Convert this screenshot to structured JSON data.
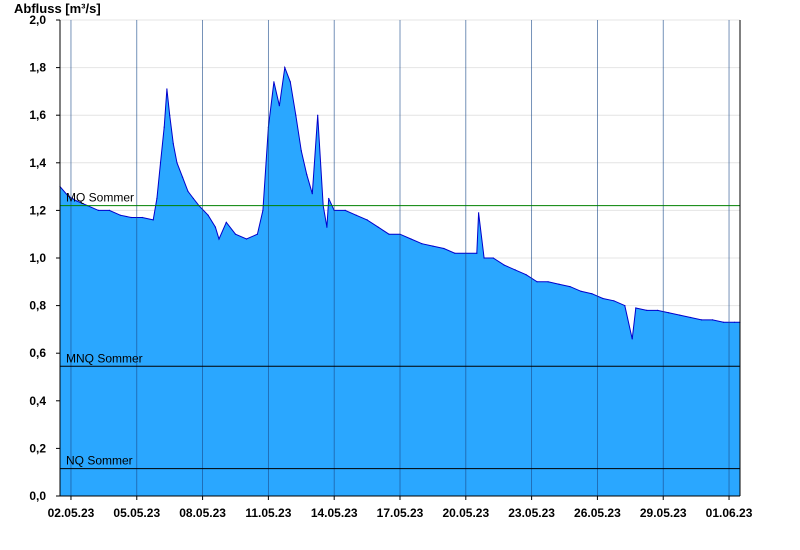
{
  "chart_data": {
    "type": "area",
    "ylabel": "Abfluss [m³/s]",
    "ylim": [
      0,
      2.0
    ],
    "y_ticks": [
      "0,0",
      "0,2",
      "0,4",
      "0,6",
      "0,8",
      "1,0",
      "1,2",
      "1,4",
      "1,6",
      "1,8",
      "2,0"
    ],
    "x_range": [
      "2023-05-01T12:00",
      "2023-06-01T12:00"
    ],
    "x_ticks": [
      {
        "date": "2023-05-02",
        "label": "02.05.23"
      },
      {
        "date": "2023-05-05",
        "label": "05.05.23"
      },
      {
        "date": "2023-05-08",
        "label": "08.05.23"
      },
      {
        "date": "2023-05-11",
        "label": "11.05.23"
      },
      {
        "date": "2023-05-14",
        "label": "14.05.23"
      },
      {
        "date": "2023-05-17",
        "label": "17.05.23"
      },
      {
        "date": "2023-05-20",
        "label": "20.05.23"
      },
      {
        "date": "2023-05-23",
        "label": "23.05.23"
      },
      {
        "date": "2023-05-26",
        "label": "26.05.23"
      },
      {
        "date": "2023-05-29",
        "label": "29.05.23"
      },
      {
        "date": "2023-06-01",
        "label": "01.06.23"
      }
    ],
    "grid": true,
    "series": [
      {
        "fill_color": "#2aa7ff",
        "line_color": "#0000cc",
        "x": [
          "2023-05-01T12:00",
          "2023-05-01T21:00",
          "2023-05-02T06:00",
          "2023-05-02T18:00",
          "2023-05-03T06:00",
          "2023-05-03T18:00",
          "2023-05-04T06:00",
          "2023-05-04T18:00",
          "2023-05-05T06:00",
          "2023-05-05T18:00",
          "2023-05-05T22:00",
          "2023-05-06T02:00",
          "2023-05-06T06:00",
          "2023-05-06T09:00",
          "2023-05-06T12:00",
          "2023-05-06T16:00",
          "2023-05-06T20:00",
          "2023-05-07T02:00",
          "2023-05-07T08:00",
          "2023-05-07T14:00",
          "2023-05-07T20:00",
          "2023-05-08T06:00",
          "2023-05-08T14:00",
          "2023-05-08T18:00",
          "2023-05-09T02:00",
          "2023-05-09T12:00",
          "2023-05-10T00:00",
          "2023-05-10T12:00",
          "2023-05-10T18:00",
          "2023-05-11T00:00",
          "2023-05-11T06:00",
          "2023-05-11T12:00",
          "2023-05-11T18:00",
          "2023-05-12T00:00",
          "2023-05-12T06:00",
          "2023-05-12T12:00",
          "2023-05-12T18:00",
          "2023-05-13T00:00",
          "2023-05-13T06:00",
          "2023-05-13T12:00",
          "2023-05-13T16:00",
          "2023-05-13T18:00",
          "2023-05-14T00:00",
          "2023-05-14T12:00",
          "2023-05-15T00:00",
          "2023-05-15T12:00",
          "2023-05-16T00:00",
          "2023-05-16T12:00",
          "2023-05-17T00:00",
          "2023-05-17T12:00",
          "2023-05-18T00:00",
          "2023-05-18T12:00",
          "2023-05-19T00:00",
          "2023-05-19T12:00",
          "2023-05-20T00:00",
          "2023-05-20T12:00",
          "2023-05-20T14:00",
          "2023-05-20T20:00",
          "2023-05-21T06:00",
          "2023-05-21T18:00",
          "2023-05-22T06:00",
          "2023-05-22T18:00",
          "2023-05-23T06:00",
          "2023-05-23T18:00",
          "2023-05-24T06:00",
          "2023-05-24T18:00",
          "2023-05-25T06:00",
          "2023-05-25T18:00",
          "2023-05-26T06:00",
          "2023-05-26T18:00",
          "2023-05-27T06:00",
          "2023-05-27T14:00",
          "2023-05-27T18:00",
          "2023-05-28T06:00",
          "2023-05-28T18:00",
          "2023-05-29T06:00",
          "2023-05-29T18:00",
          "2023-05-30T06:00",
          "2023-05-30T18:00",
          "2023-05-31T06:00",
          "2023-05-31T18:00",
          "2023-06-01T06:00",
          "2023-06-01T12:00"
        ],
        "values": [
          1.3,
          1.26,
          1.24,
          1.22,
          1.2,
          1.2,
          1.18,
          1.17,
          1.17,
          1.16,
          1.25,
          1.4,
          1.55,
          1.71,
          1.6,
          1.48,
          1.4,
          1.34,
          1.28,
          1.25,
          1.22,
          1.18,
          1.13,
          1.08,
          1.15,
          1.1,
          1.08,
          1.1,
          1.2,
          1.55,
          1.74,
          1.64,
          1.8,
          1.74,
          1.6,
          1.45,
          1.35,
          1.27,
          1.6,
          1.22,
          1.13,
          1.25,
          1.2,
          1.2,
          1.18,
          1.16,
          1.13,
          1.1,
          1.1,
          1.08,
          1.06,
          1.05,
          1.04,
          1.02,
          1.02,
          1.02,
          1.19,
          1.0,
          1.0,
          0.97,
          0.95,
          0.93,
          0.9,
          0.9,
          0.89,
          0.88,
          0.86,
          0.85,
          0.83,
          0.82,
          0.8,
          0.66,
          0.79,
          0.78,
          0.78,
          0.77,
          0.76,
          0.75,
          0.74,
          0.74,
          0.73,
          0.73,
          0.73
        ]
      }
    ],
    "reference_lines": [
      {
        "label": "MQ Sommer",
        "value": 1.22,
        "color": "#008000"
      },
      {
        "label": "MNQ Sommer",
        "value": 0.545,
        "color": "#000000"
      },
      {
        "label": "NQ Sommer",
        "value": 0.115,
        "color": "#000000"
      }
    ]
  }
}
